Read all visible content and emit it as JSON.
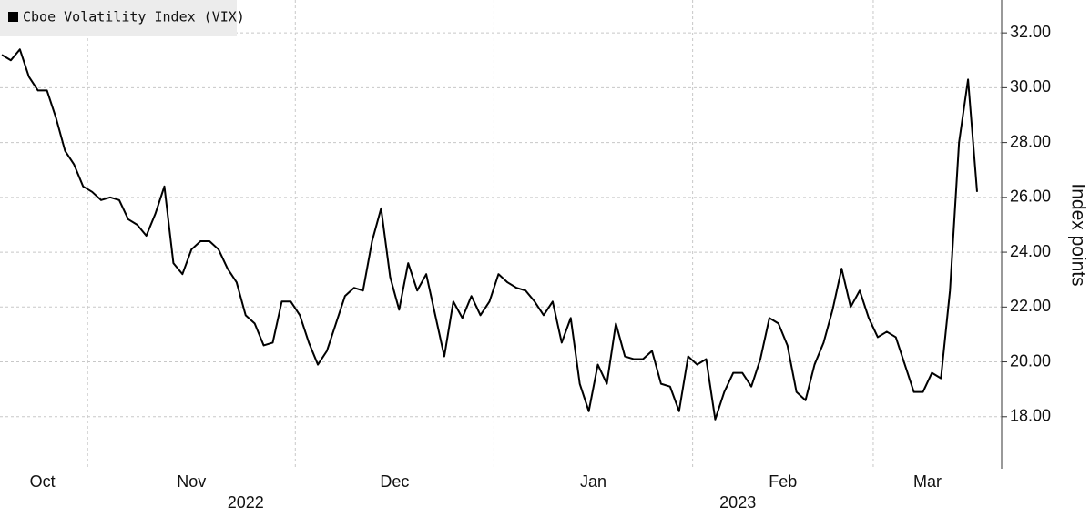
{
  "chart_data": {
    "type": "line",
    "y_axis_label": "Index points",
    "categories": [
      "Oct",
      "Oct",
      "Oct",
      "Oct",
      "Oct",
      "Oct",
      "Oct",
      "Oct",
      "Oct",
      "Oct",
      "Nov",
      "Nov",
      "Nov",
      "Nov",
      "Nov",
      "Nov",
      "Nov",
      "Nov",
      "Nov",
      "Nov",
      "Nov",
      "Nov",
      "Nov",
      "Nov",
      "Nov",
      "Nov",
      "Nov",
      "Nov",
      "Nov",
      "Nov",
      "Nov",
      "Nov",
      "Nov",
      "Dec",
      "Dec",
      "Dec",
      "Dec",
      "Dec",
      "Dec",
      "Dec",
      "Dec",
      "Dec",
      "Dec",
      "Dec",
      "Dec",
      "Dec",
      "Dec",
      "Dec",
      "Dec",
      "Dec",
      "Dec",
      "Dec",
      "Dec",
      "Dec",
      "Dec",
      "Jan",
      "Jan",
      "Jan",
      "Jan",
      "Jan",
      "Jan",
      "Jan",
      "Jan",
      "Jan",
      "Jan",
      "Jan",
      "Jan",
      "Jan",
      "Jan",
      "Jan",
      "Jan",
      "Jan",
      "Jan",
      "Jan",
      "Jan",
      "Jan",
      "Jan",
      "Feb",
      "Feb",
      "Feb",
      "Feb",
      "Feb",
      "Feb",
      "Feb",
      "Feb",
      "Feb",
      "Feb",
      "Feb",
      "Feb",
      "Feb",
      "Feb",
      "Feb",
      "Feb",
      "Feb",
      "Feb",
      "Feb",
      "Feb",
      "Mar",
      "Mar",
      "Mar",
      "Mar",
      "Mar",
      "Mar",
      "Mar",
      "Mar",
      "Mar",
      "Mar",
      "Mar",
      "Mar"
    ],
    "category_years": [
      "2022",
      "2022",
      "2022",
      "2022",
      "2022",
      "2022",
      "2022",
      "2022",
      "2022",
      "2022",
      "2022",
      "2022",
      "2022",
      "2022",
      "2022",
      "2022",
      "2022",
      "2022",
      "2022",
      "2022",
      "2022",
      "2022",
      "2022",
      "2022",
      "2022",
      "2022",
      "2022",
      "2022",
      "2022",
      "2022",
      "2022",
      "2022",
      "2022",
      "2022",
      "2022",
      "2022",
      "2022",
      "2022",
      "2022",
      "2022",
      "2022",
      "2022",
      "2022",
      "2022",
      "2022",
      "2022",
      "2022",
      "2022",
      "2022",
      "2022",
      "2022",
      "2022",
      "2022",
      "2022",
      "2022",
      "2023",
      "2023",
      "2023",
      "2023",
      "2023",
      "2023",
      "2023",
      "2023",
      "2023",
      "2023",
      "2023",
      "2023",
      "2023",
      "2023",
      "2023",
      "2023",
      "2023",
      "2023",
      "2023",
      "2023",
      "2023",
      "2023",
      "2023",
      "2023",
      "2023",
      "2023",
      "2023",
      "2023",
      "2023",
      "2023",
      "2023",
      "2023",
      "2023",
      "2023",
      "2023",
      "2023",
      "2023",
      "2023",
      "2023",
      "2023",
      "2023",
      "2023",
      "2023",
      "2023",
      "2023",
      "2023",
      "2023",
      "2023",
      "2023",
      "2023",
      "2023",
      "2023",
      "2023",
      "2023"
    ],
    "series": [
      {
        "name": "Cboe Volatility Index (VIX)",
        "color": "#000000",
        "values": [
          31.2,
          31.0,
          31.4,
          30.4,
          29.9,
          29.9,
          28.9,
          27.7,
          27.2,
          26.4,
          26.2,
          25.9,
          26.0,
          25.9,
          25.2,
          25.0,
          24.6,
          25.4,
          26.4,
          23.6,
          23.2,
          24.1,
          24.4,
          24.4,
          24.1,
          23.4,
          22.9,
          21.7,
          21.4,
          20.6,
          20.7,
          22.2,
          22.2,
          21.7,
          20.7,
          19.9,
          20.4,
          21.4,
          22.4,
          22.7,
          22.6,
          24.4,
          25.6,
          23.1,
          21.9,
          23.6,
          22.6,
          23.2,
          21.7,
          20.2,
          22.2,
          21.6,
          22.4,
          21.7,
          22.2,
          23.2,
          22.9,
          22.7,
          22.6,
          22.2,
          21.7,
          22.2,
          20.7,
          21.6,
          19.2,
          18.2,
          19.9,
          19.2,
          21.4,
          20.2,
          20.1,
          20.1,
          20.4,
          19.2,
          19.1,
          18.2,
          20.2,
          19.9,
          20.1,
          17.9,
          18.9,
          19.6,
          19.6,
          19.1,
          20.1,
          21.6,
          21.4,
          20.6,
          18.9,
          18.6,
          19.9,
          20.7,
          21.9,
          23.4,
          22.0,
          22.6,
          21.6,
          20.9,
          21.1,
          20.9,
          19.9,
          18.9,
          18.9,
          19.6,
          19.4,
          22.6,
          28.0,
          30.3,
          26.2
        ]
      }
    ],
    "ylim": [
      16.1,
      33.2
    ],
    "yticks": [
      {
        "value": 18,
        "label": "18.00"
      },
      {
        "value": 20,
        "label": "20.00"
      },
      {
        "value": 22,
        "label": "22.00"
      },
      {
        "value": 24,
        "label": "24.00"
      },
      {
        "value": 26,
        "label": "26.00"
      },
      {
        "value": 28,
        "label": "28.00"
      },
      {
        "value": 30,
        "label": "30.00"
      },
      {
        "value": 32,
        "label": "32.00"
      }
    ],
    "grid": true
  }
}
